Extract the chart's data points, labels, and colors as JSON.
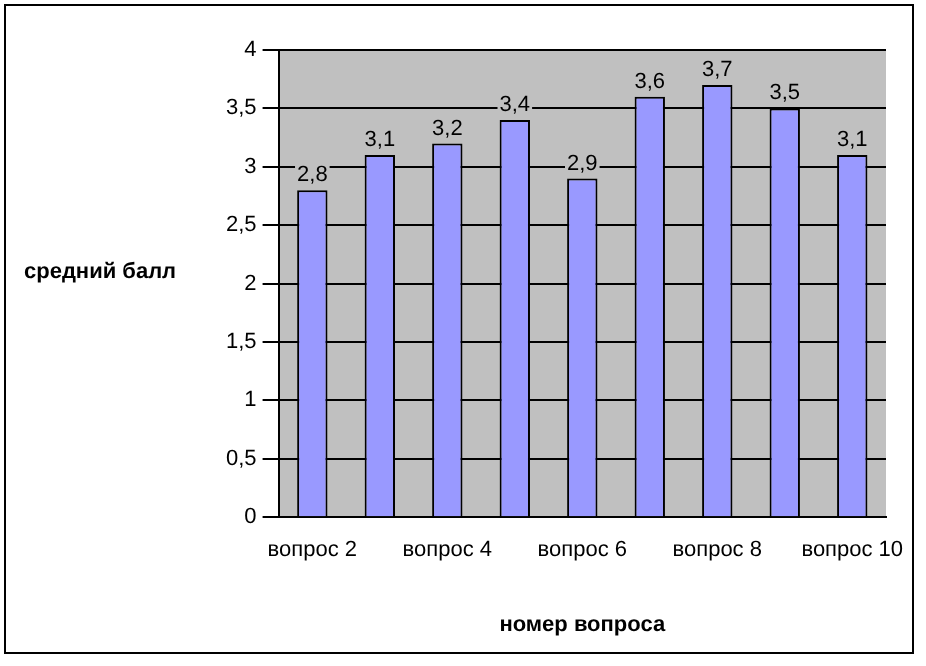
{
  "chart_data": {
    "type": "bar",
    "xlabel": "номер вопроса",
    "ylabel": "средний балл",
    "categories": [
      "вопрос 2",
      null,
      "вопрос 4",
      null,
      "вопрос 6",
      null,
      "вопрос 8",
      null,
      "вопрос 10"
    ],
    "values": [
      2.8,
      3.1,
      3.2,
      3.4,
      2.9,
      3.6,
      3.7,
      3.5,
      3.1
    ],
    "value_labels": [
      "2,8",
      "3,1",
      "3,2",
      "3,4",
      "2,9",
      "3,6",
      "3,7",
      "3,5",
      "3,1"
    ],
    "color": "#9999ff",
    "ylim": [
      0,
      4
    ],
    "yticks": [
      0,
      {
        "value": 0.5,
        "label": "0,5"
      },
      1,
      {
        "value": 1.5,
        "label": "1,5"
      },
      2,
      {
        "value": 2.5,
        "label": "2,5"
      },
      3,
      {
        "value": 3.5,
        "label": "3,5"
      },
      4
    ],
    "grid": "y",
    "legend": false
  }
}
